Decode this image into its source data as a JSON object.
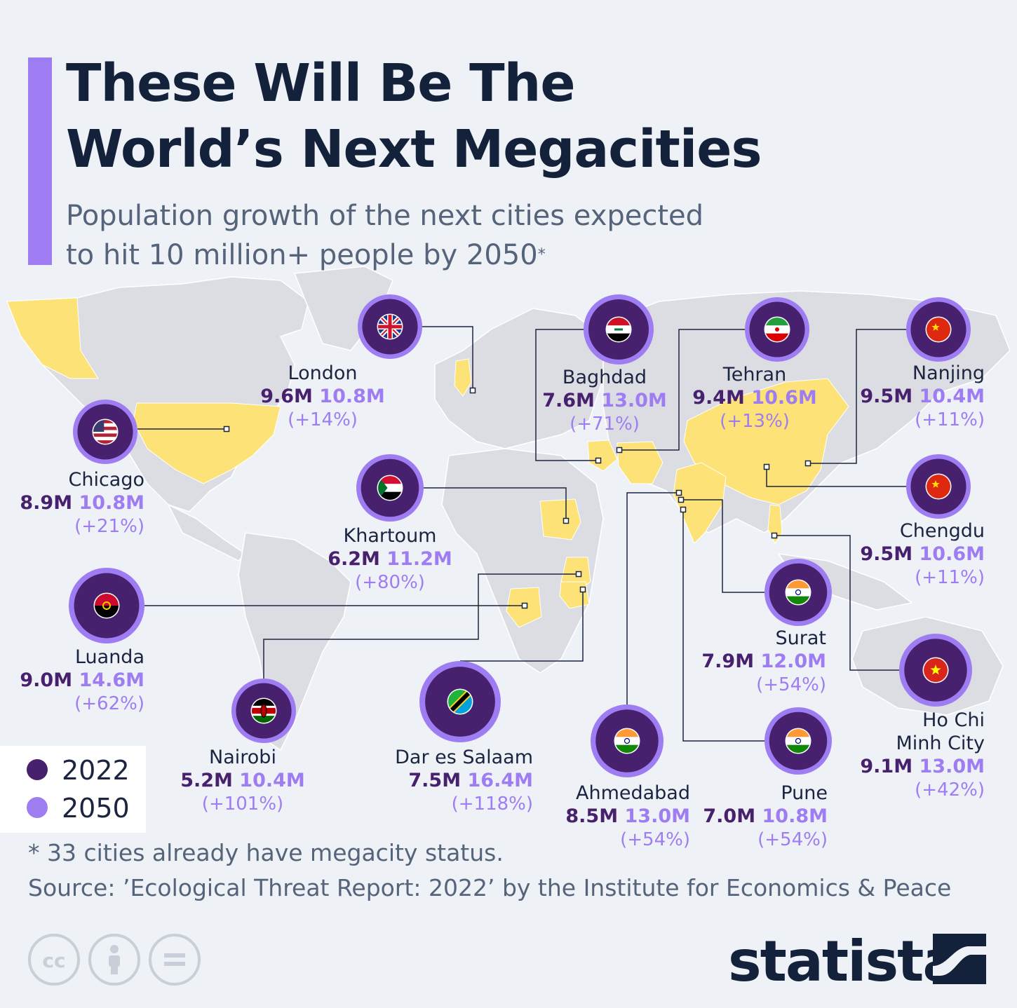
{
  "title_lines": [
    "These Will Be The",
    "World’s Next Megacities"
  ],
  "subtitle_lines": [
    "Population growth of the next cities expected",
    "to hit 10 million+ people by 2050"
  ],
  "subtitle_marker": "*",
  "legend": [
    {
      "label": "2022",
      "color": "#47206e"
    },
    {
      "label": "2050",
      "color": "#9e7df2"
    }
  ],
  "cities": [
    {
      "name": "London",
      "pop_2022": "9.6M",
      "pop_2050": "10.8M",
      "change": "(+14%)",
      "flag": "uk-flag-icon"
    },
    {
      "name": "Baghdad",
      "pop_2022": "7.6M",
      "pop_2050": "13.0M",
      "change": "(+71%)",
      "flag": "iraq-flag-icon"
    },
    {
      "name": "Tehran",
      "pop_2022": "9.4M",
      "pop_2050": "10.6M",
      "change": "(+13%)",
      "flag": "iran-flag-icon"
    },
    {
      "name": "Nanjing",
      "pop_2022": "9.5M",
      "pop_2050": "10.4M",
      "change": "(+11%)",
      "flag": "china-flag-icon"
    },
    {
      "name": "Chicago",
      "pop_2022": "8.9M",
      "pop_2050": "10.8M",
      "change": "(+21%)",
      "flag": "usa-flag-icon"
    },
    {
      "name": "Khartoum",
      "pop_2022": "6.2M",
      "pop_2050": "11.2M",
      "change": "(+80%)",
      "flag": "sudan-flag-icon"
    },
    {
      "name": "Chengdu",
      "pop_2022": "9.5M",
      "pop_2050": "10.6M",
      "change": "(+11%)",
      "flag": "china-flag-icon"
    },
    {
      "name": "Luanda",
      "pop_2022": "9.0M",
      "pop_2050": "14.6M",
      "change": "(+62%)",
      "flag": "angola-flag-icon"
    },
    {
      "name": "Surat",
      "pop_2022": "7.9M",
      "pop_2050": "12.0M",
      "change": "(+54%)",
      "flag": "india-flag-icon"
    },
    {
      "name": "Nairobi",
      "pop_2022": "5.2M",
      "pop_2050": "10.4M",
      "change": "(+101%)",
      "flag": "kenya-flag-icon"
    },
    {
      "name": "Dar es Salaam",
      "pop_2022": "7.5M",
      "pop_2050": "16.4M",
      "change": "(+118%)",
      "flag": "tanzania-flag-icon"
    },
    {
      "name": "Ahmedabad",
      "pop_2022": "8.5M",
      "pop_2050": "13.0M",
      "change": "(+54%)",
      "flag": "india-flag-icon"
    },
    {
      "name": "Pune",
      "pop_2022": "7.0M",
      "pop_2050": "10.8M",
      "change": "(+54%)",
      "flag": "india-flag-icon"
    },
    {
      "name": "Ho Chi Minh City",
      "name_lines": [
        "Ho Chi",
        "Minh City"
      ],
      "pop_2022": "9.1M",
      "pop_2050": "13.0M",
      "change": "(+42%)",
      "flag": "vietnam-flag-icon"
    }
  ],
  "footnote": "* 33 cities already have megacity status.",
  "source": "Source: ’Ecological Threat Report: 2022’ by the Institute for Economics & Peace",
  "license_icons": [
    "creative-commons-icon",
    "attribution-icon",
    "no-derivatives-icon"
  ],
  "brand": "statista",
  "colors": {
    "background": "#eef1f6",
    "land": "#dcdde2",
    "highlight": "#fde277",
    "dark_purple": "#47206e",
    "light_purple": "#9e7df2",
    "title": "#13213a"
  }
}
